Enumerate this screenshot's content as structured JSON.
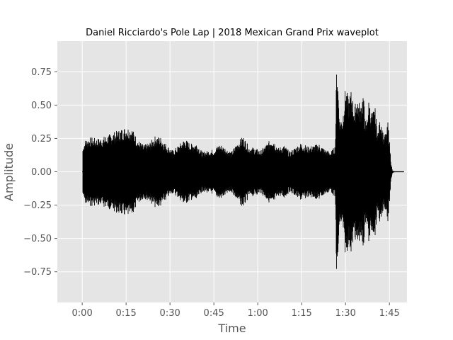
{
  "chart_data": {
    "type": "area",
    "title": "Daniel Ricciardo's Pole Lap | 2018 Mexican Grand Prix waveplot",
    "xlabel": "Time",
    "ylabel": "Amplitude",
    "xlim_seconds": [
      -8.5,
      111
    ],
    "ylim": [
      -0.98,
      0.98
    ],
    "x_ticks_seconds": [
      0,
      15,
      30,
      45,
      60,
      75,
      90,
      105
    ],
    "x_tick_labels": [
      "0:00",
      "0:15",
      "0:30",
      "0:45",
      "1:00",
      "1:15",
      "1:30",
      "1:45"
    ],
    "y_ticks": [
      -0.75,
      -0.5,
      -0.25,
      0.0,
      0.25,
      0.5,
      0.75
    ],
    "y_tick_labels": [
      "−0.75",
      "−0.50",
      "−0.25",
      "0.00",
      "0.25",
      "0.50",
      "0.75"
    ],
    "grid": true,
    "style": "ggplot",
    "colors": {
      "waveform": "#000000",
      "plot_background": "#e5e5e5",
      "grid": "#ffffff"
    },
    "envelope": {
      "time_seconds": [
        0,
        1,
        3,
        5,
        7,
        9,
        11,
        13,
        15,
        17,
        19,
        21,
        23,
        25,
        27,
        29,
        31,
        33,
        35,
        37,
        39,
        41,
        43,
        45,
        47,
        49,
        51,
        53,
        55,
        57,
        59,
        61,
        63,
        65,
        67,
        69,
        71,
        73,
        75,
        77,
        79,
        81,
        83,
        85,
        86.5,
        87,
        88,
        89,
        90,
        91,
        92,
        93,
        94,
        95,
        96,
        97,
        98,
        99,
        100,
        101,
        102,
        103,
        104,
        104.5,
        105,
        105.5,
        106,
        107,
        108,
        109,
        110
      ],
      "amplitude": [
        0.17,
        0.24,
        0.26,
        0.25,
        0.26,
        0.28,
        0.3,
        0.32,
        0.34,
        0.33,
        0.24,
        0.2,
        0.22,
        0.27,
        0.26,
        0.2,
        0.16,
        0.2,
        0.25,
        0.21,
        0.22,
        0.15,
        0.16,
        0.17,
        0.21,
        0.18,
        0.15,
        0.22,
        0.27,
        0.19,
        0.18,
        0.16,
        0.21,
        0.26,
        0.18,
        0.2,
        0.15,
        0.19,
        0.22,
        0.19,
        0.2,
        0.21,
        0.17,
        0.15,
        0.2,
        0.88,
        0.4,
        0.42,
        0.65,
        0.55,
        0.62,
        0.48,
        0.58,
        0.5,
        0.6,
        0.35,
        0.55,
        0.43,
        0.5,
        0.3,
        0.42,
        0.27,
        0.3,
        0.38,
        0.25,
        0.08,
        0.01,
        0.0,
        0.0,
        0.0,
        0.0
      ]
    }
  }
}
